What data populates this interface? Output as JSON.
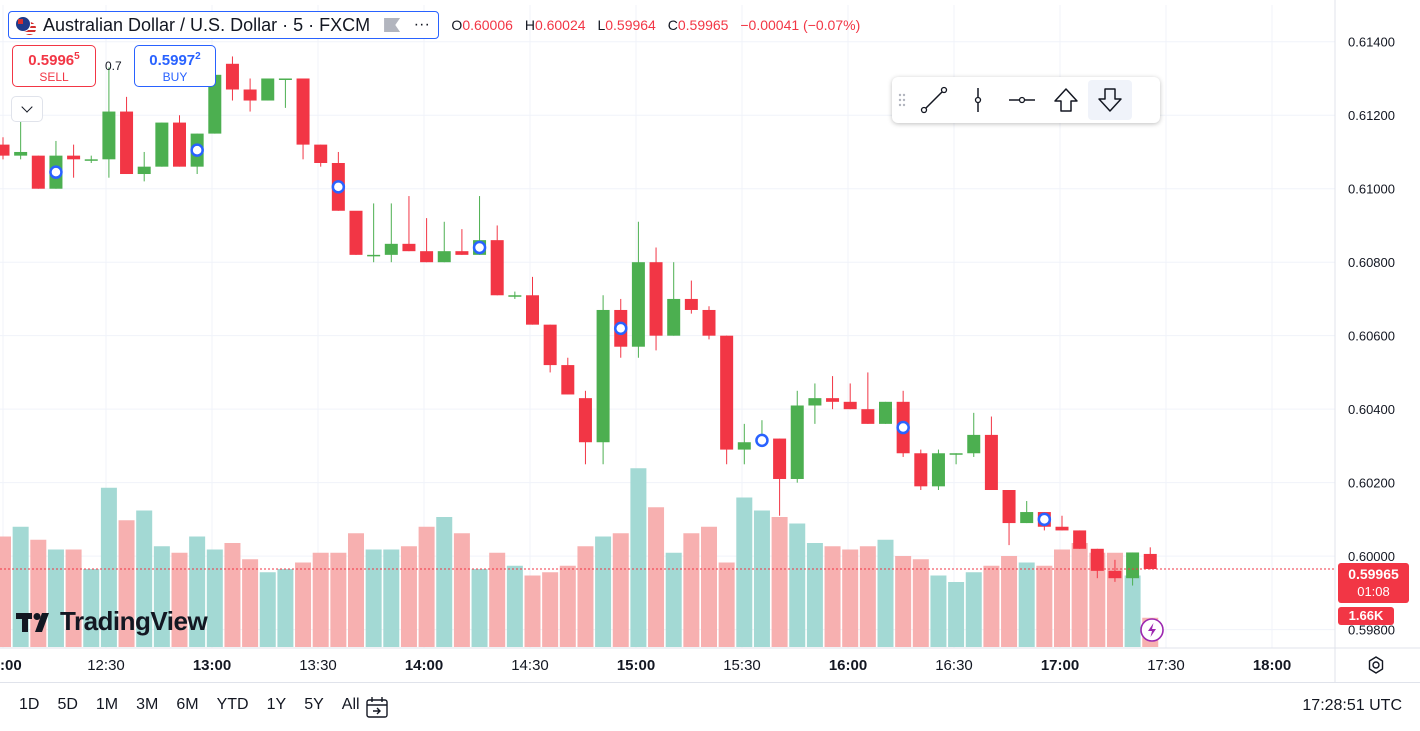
{
  "header": {
    "symbol_title": "Australian Dollar / U.S. Dollar · 5 · FXCM",
    "more_glyph": "∙∙∙",
    "ohlc": [
      {
        "key": "O",
        "value": "0.60006"
      },
      {
        "key": "H",
        "value": "0.60024"
      },
      {
        "key": "L",
        "value": "0.59964"
      },
      {
        "key": "C",
        "value": "0.59965"
      },
      {
        "key": "",
        "value": "−0.00041 (−0.07%)"
      }
    ]
  },
  "trade": {
    "sell_price_main": "0.5996",
    "sell_price_sup": "5",
    "sell_label": "SELL",
    "spread": "0.7",
    "buy_price_main": "0.5997",
    "buy_price_sup": "2",
    "buy_label": "BUY"
  },
  "drawing_toolbar": {
    "tools": [
      "trend-line-icon",
      "vertical-line-icon",
      "horizontal-ray-icon",
      "arrow-up-icon",
      "arrow-down-icon"
    ],
    "active": "arrow-down-icon"
  },
  "logo_text": "TradingView",
  "price_labels": {
    "last": "0.59965",
    "countdown": "01:08",
    "volume": "1.66K"
  },
  "bottom_bar": {
    "ranges": [
      "1D",
      "5D",
      "1M",
      "3M",
      "6M",
      "YTD",
      "1Y",
      "5Y",
      "All"
    ],
    "time": "17:28:51 UTC"
  },
  "colors": {
    "up": "#089981",
    "down": "#f23645",
    "candle_up": "#4caf50",
    "vol_up": "#a3d9d4",
    "vol_down": "#f7b0b0",
    "accent": "#2962ff"
  },
  "chart_data": {
    "type": "candlestick",
    "y_axis": {
      "min": 0.5975,
      "max": 0.615,
      "ticks": [
        "0.61400",
        "0.61200",
        "0.61000",
        "0.60800",
        "0.60600",
        "0.60400",
        "0.60200",
        "0.60000",
        "0.59800"
      ]
    },
    "x_axis": {
      "ticks": [
        ":00",
        "12:30",
        "13:00",
        "13:30",
        "14:00",
        "14:30",
        "15:00",
        "15:30",
        "16:00",
        "16:30",
        "17:00",
        "17:30",
        "18:00"
      ],
      "bold": [
        ":00",
        "13:00",
        "14:00",
        "15:00",
        "16:00",
        "17:00",
        "18:00"
      ]
    },
    "candles": [
      [
        0.6112,
        0.6114,
        0.6108,
        0.6109
      ],
      [
        0.6109,
        0.6122,
        0.6108,
        0.611
      ],
      [
        0.6109,
        0.6109,
        0.61,
        0.61
      ],
      [
        0.61,
        0.6113,
        0.61,
        0.6109
      ],
      [
        0.6109,
        0.6112,
        0.6103,
        0.6108
      ],
      [
        0.6108,
        0.6109,
        0.6107,
        0.6108
      ],
      [
        0.6108,
        0.6133,
        0.6103,
        0.6121
      ],
      [
        0.6121,
        0.6125,
        0.6104,
        0.6104
      ],
      [
        0.6104,
        0.611,
        0.6102,
        0.6106
      ],
      [
        0.6106,
        0.6118,
        0.6106,
        0.6118
      ],
      [
        0.6118,
        0.612,
        0.6106,
        0.6106
      ],
      [
        0.6106,
        0.6115,
        0.6104,
        0.6115
      ],
      [
        0.6115,
        0.6136,
        0.6115,
        0.6131
      ],
      [
        0.6134,
        0.6136,
        0.6124,
        0.6127
      ],
      [
        0.6127,
        0.613,
        0.6121,
        0.6124
      ],
      [
        0.6124,
        0.613,
        0.6124,
        0.613
      ],
      [
        0.613,
        0.613,
        0.6122,
        0.613
      ],
      [
        0.613,
        0.613,
        0.6108,
        0.6112
      ],
      [
        0.6112,
        0.6112,
        0.6106,
        0.6107
      ],
      [
        0.6107,
        0.611,
        0.6094,
        0.6094
      ],
      [
        0.6094,
        0.6093,
        0.6082,
        0.6082
      ],
      [
        0.6082,
        0.6096,
        0.608,
        0.6082
      ],
      [
        0.6082,
        0.6096,
        0.608,
        0.6085
      ],
      [
        0.6085,
        0.6098,
        0.6083,
        0.6083
      ],
      [
        0.6083,
        0.6092,
        0.608,
        0.608
      ],
      [
        0.608,
        0.6091,
        0.608,
        0.6083
      ],
      [
        0.6083,
        0.6089,
        0.6082,
        0.6082
      ],
      [
        0.6082,
        0.6098,
        0.6082,
        0.6086
      ],
      [
        0.6086,
        0.609,
        0.6071,
        0.6071
      ],
      [
        0.6071,
        0.6072,
        0.607,
        0.6071
      ],
      [
        0.6071,
        0.6076,
        0.6063,
        0.6063
      ],
      [
        0.6063,
        0.6063,
        0.605,
        0.6052
      ],
      [
        0.6052,
        0.6054,
        0.6044,
        0.6044
      ],
      [
        0.6043,
        0.6045,
        0.6025,
        0.6031
      ],
      [
        0.6031,
        0.6071,
        0.6025,
        0.6067
      ],
      [
        0.6067,
        0.607,
        0.6054,
        0.6057
      ],
      [
        0.6057,
        0.6091,
        0.6054,
        0.608
      ],
      [
        0.608,
        0.6084,
        0.6056,
        0.606
      ],
      [
        0.606,
        0.608,
        0.606,
        0.607
      ],
      [
        0.607,
        0.6075,
        0.6066,
        0.6067
      ],
      [
        0.6067,
        0.6068,
        0.6059,
        0.606
      ],
      [
        0.606,
        0.606,
        0.6025,
        0.6029
      ],
      [
        0.6029,
        0.6036,
        0.6025,
        0.6031
      ],
      [
        0.6031,
        0.6037,
        0.603,
        0.6032
      ],
      [
        0.6032,
        0.6032,
        0.6011,
        0.6021
      ],
      [
        0.6021,
        0.6045,
        0.602,
        0.6041
      ],
      [
        0.6041,
        0.6047,
        0.6036,
        0.6043
      ],
      [
        0.6043,
        0.6049,
        0.604,
        0.6042
      ],
      [
        0.6042,
        0.6047,
        0.604,
        0.604
      ],
      [
        0.604,
        0.605,
        0.6036,
        0.6036
      ],
      [
        0.6036,
        0.6042,
        0.6036,
        0.6042
      ],
      [
        0.6042,
        0.6045,
        0.6027,
        0.6028
      ],
      [
        0.6028,
        0.6029,
        0.6018,
        0.6019
      ],
      [
        0.6019,
        0.6029,
        0.6018,
        0.6028
      ],
      [
        0.6028,
        0.6028,
        0.6025,
        0.6028
      ],
      [
        0.6028,
        0.6039,
        0.6027,
        0.6033
      ],
      [
        0.6033,
        0.6038,
        0.6018,
        0.6018
      ],
      [
        0.6018,
        0.6018,
        0.6003,
        0.6009
      ],
      [
        0.6009,
        0.6015,
        0.6009,
        0.6012
      ],
      [
        0.6012,
        0.6012,
        0.6007,
        0.6008
      ],
      [
        0.6008,
        0.6011,
        0.6007,
        0.6007
      ],
      [
        0.6007,
        0.6007,
        0.6002,
        0.6002
      ],
      [
        0.6002,
        0.6002,
        0.5994,
        0.5996
      ],
      [
        0.5996,
        0.5999,
        0.5993,
        0.5994
      ],
      [
        0.5994,
        0.6001,
        0.5992,
        0.6001
      ],
      [
        0.60006,
        0.60024,
        0.59964,
        0.59965
      ]
    ],
    "volumes": [
      0.34,
      0.37,
      0.33,
      0.3,
      0.3,
      0.24,
      0.49,
      0.39,
      0.42,
      0.31,
      0.29,
      0.34,
      0.3,
      0.32,
      0.27,
      0.23,
      0.24,
      0.26,
      0.29,
      0.29,
      0.35,
      0.3,
      0.3,
      0.31,
      0.37,
      0.4,
      0.35,
      0.24,
      0.29,
      0.25,
      0.22,
      0.23,
      0.25,
      0.31,
      0.34,
      0.35,
      0.55,
      0.43,
      0.29,
      0.35,
      0.37,
      0.26,
      0.46,
      0.42,
      0.4,
      0.38,
      0.32,
      0.31,
      0.3,
      0.31,
      0.33,
      0.28,
      0.27,
      0.22,
      0.2,
      0.23,
      0.25,
      0.28,
      0.26,
      0.25,
      0.3,
      0.32,
      0.29,
      0.29,
      0.22,
      0.09
    ],
    "trade_markers": [
      3,
      11,
      19,
      27,
      35,
      43,
      51,
      59
    ]
  }
}
